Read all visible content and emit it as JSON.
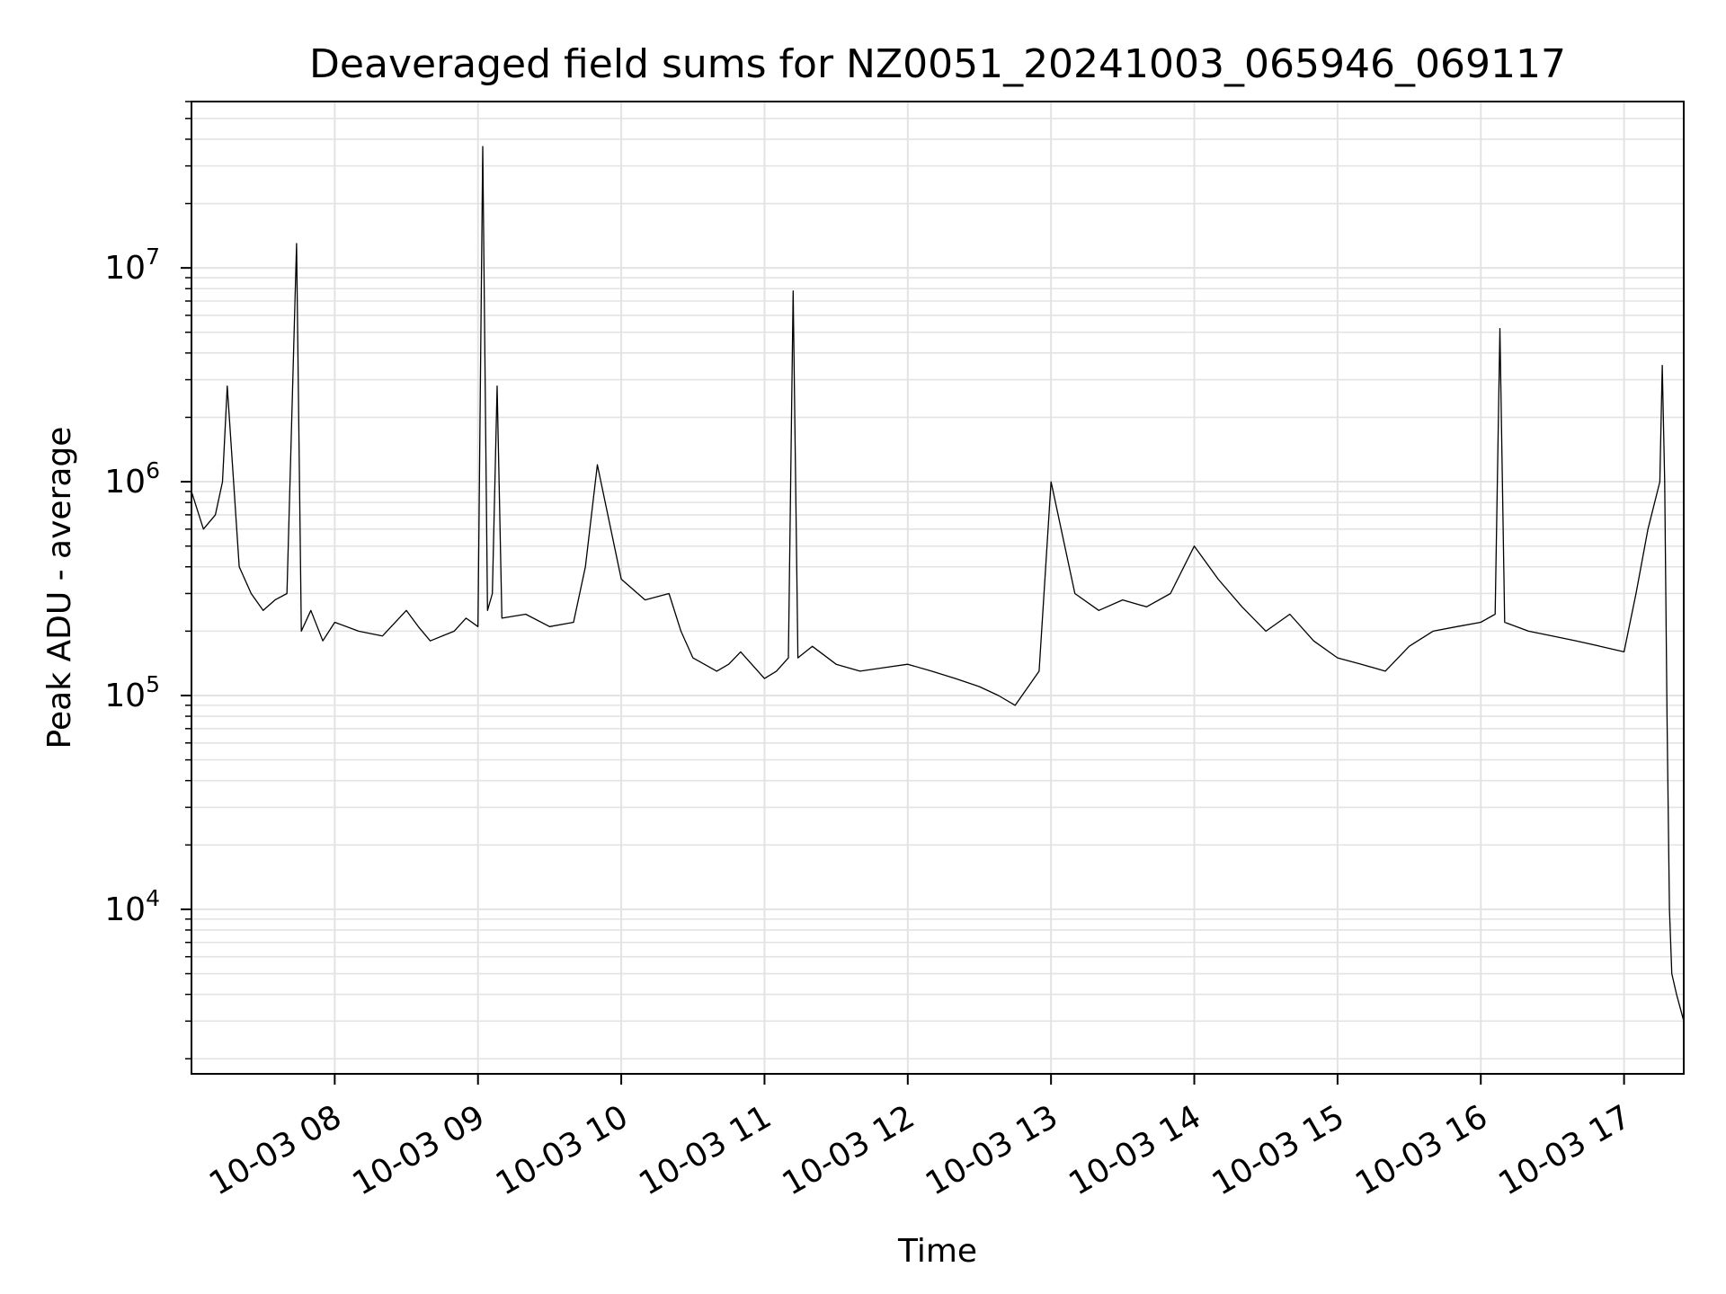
{
  "chart_data": {
    "type": "line",
    "title": "Deaveraged field sums for NZ0051_20241003_065946_069117",
    "xlabel": "Time",
    "ylabel": "Peak ADU - average",
    "yscale": "log",
    "ylim": [
      1700,
      60000000
    ],
    "xlim": [
      "2024-10-03 07:00",
      "2024-10-03 17:25"
    ],
    "grid": true,
    "legend": "none",
    "x_ticks": [
      {
        "at": "2024-10-03 08:00",
        "label": "10-03 08"
      },
      {
        "at": "2024-10-03 09:00",
        "label": "10-03 09"
      },
      {
        "at": "2024-10-03 10:00",
        "label": "10-03 10"
      },
      {
        "at": "2024-10-03 11:00",
        "label": "10-03 11"
      },
      {
        "at": "2024-10-03 12:00",
        "label": "10-03 12"
      },
      {
        "at": "2024-10-03 13:00",
        "label": "10-03 13"
      },
      {
        "at": "2024-10-03 14:00",
        "label": "10-03 14"
      },
      {
        "at": "2024-10-03 15:00",
        "label": "10-03 15"
      },
      {
        "at": "2024-10-03 16:00",
        "label": "10-03 16"
      },
      {
        "at": "2024-10-03 17:00",
        "label": "10-03 17"
      }
    ],
    "y_ticks": [
      {
        "value": 10000,
        "base": "10",
        "exp": "4"
      },
      {
        "value": 100000,
        "base": "10",
        "exp": "5"
      },
      {
        "value": 1000000,
        "base": "10",
        "exp": "6"
      },
      {
        "value": 10000000,
        "base": "10",
        "exp": "7"
      }
    ],
    "series_color": "#000000",
    "series": [
      {
        "x": [
          "2024-10-03 07:00",
          "2024-10-03 07:05",
          "2024-10-03 07:10",
          "2024-10-03 07:13",
          "2024-10-03 07:15",
          "2024-10-03 07:20",
          "2024-10-03 07:25",
          "2024-10-03 07:30",
          "2024-10-03 07:35",
          "2024-10-03 07:40",
          "2024-10-03 07:44",
          "2024-10-03 07:46",
          "2024-10-03 07:50",
          "2024-10-03 07:55",
          "2024-10-03 08:00",
          "2024-10-03 08:10",
          "2024-10-03 08:20",
          "2024-10-03 08:30",
          "2024-10-03 08:35",
          "2024-10-03 08:40",
          "2024-10-03 08:50",
          "2024-10-03 08:55",
          "2024-10-03 09:00",
          "2024-10-03 09:02",
          "2024-10-03 09:04",
          "2024-10-03 09:06",
          "2024-10-03 09:08",
          "2024-10-03 09:10",
          "2024-10-03 09:20",
          "2024-10-03 09:30",
          "2024-10-03 09:40",
          "2024-10-03 09:45",
          "2024-10-03 09:50",
          "2024-10-03 10:00",
          "2024-10-03 10:10",
          "2024-10-03 10:20",
          "2024-10-03 10:25",
          "2024-10-03 10:30",
          "2024-10-03 10:40",
          "2024-10-03 10:45",
          "2024-10-03 10:50",
          "2024-10-03 11:00",
          "2024-10-03 11:05",
          "2024-10-03 11:10",
          "2024-10-03 11:12",
          "2024-10-03 11:14",
          "2024-10-03 11:20",
          "2024-10-03 11:30",
          "2024-10-03 11:40",
          "2024-10-03 11:50",
          "2024-10-03 12:00",
          "2024-10-03 12:10",
          "2024-10-03 12:20",
          "2024-10-03 12:30",
          "2024-10-03 12:38",
          "2024-10-03 12:45",
          "2024-10-03 12:55",
          "2024-10-03 13:00",
          "2024-10-03 13:10",
          "2024-10-03 13:20",
          "2024-10-03 13:30",
          "2024-10-03 13:40",
          "2024-10-03 13:50",
          "2024-10-03 14:00",
          "2024-10-03 14:10",
          "2024-10-03 14:20",
          "2024-10-03 14:30",
          "2024-10-03 14:40",
          "2024-10-03 14:50",
          "2024-10-03 15:00",
          "2024-10-03 15:10",
          "2024-10-03 15:20",
          "2024-10-03 15:30",
          "2024-10-03 15:40",
          "2024-10-03 15:50",
          "2024-10-03 16:00",
          "2024-10-03 16:06",
          "2024-10-03 16:08",
          "2024-10-03 16:10",
          "2024-10-03 16:20",
          "2024-10-03 16:30",
          "2024-10-03 16:40",
          "2024-10-03 16:50",
          "2024-10-03 17:00",
          "2024-10-03 17:05",
          "2024-10-03 17:10",
          "2024-10-03 17:15",
          "2024-10-03 17:16",
          "2024-10-03 17:17",
          "2024-10-03 17:18",
          "2024-10-03 17:19",
          "2024-10-03 17:20",
          "2024-10-03 17:22",
          "2024-10-03 17:25"
        ],
        "y": [
          900000,
          600000,
          700000,
          1000000,
          2800000,
          400000,
          300000,
          250000,
          280000,
          300000,
          13000000,
          200000,
          250000,
          180000,
          220000,
          200000,
          190000,
          250000,
          210000,
          180000,
          200000,
          230000,
          210000,
          37000000,
          250000,
          300000,
          2800000,
          230000,
          240000,
          210000,
          220000,
          400000,
          1200000,
          350000,
          280000,
          300000,
          200000,
          150000,
          130000,
          140000,
          160000,
          120000,
          130000,
          150000,
          7800000,
          150000,
          170000,
          140000,
          130000,
          135000,
          140000,
          130000,
          120000,
          110000,
          100000,
          90000,
          130000,
          1000000,
          300000,
          250000,
          280000,
          260000,
          300000,
          500000,
          350000,
          260000,
          200000,
          240000,
          180000,
          150000,
          140000,
          130000,
          170000,
          200000,
          210000,
          220000,
          240000,
          5200000,
          220000,
          200000,
          190000,
          180000,
          170000,
          160000,
          300000,
          600000,
          1000000,
          3500000,
          1000000,
          80000,
          10000,
          5000,
          4000,
          3000
        ]
      }
    ]
  }
}
